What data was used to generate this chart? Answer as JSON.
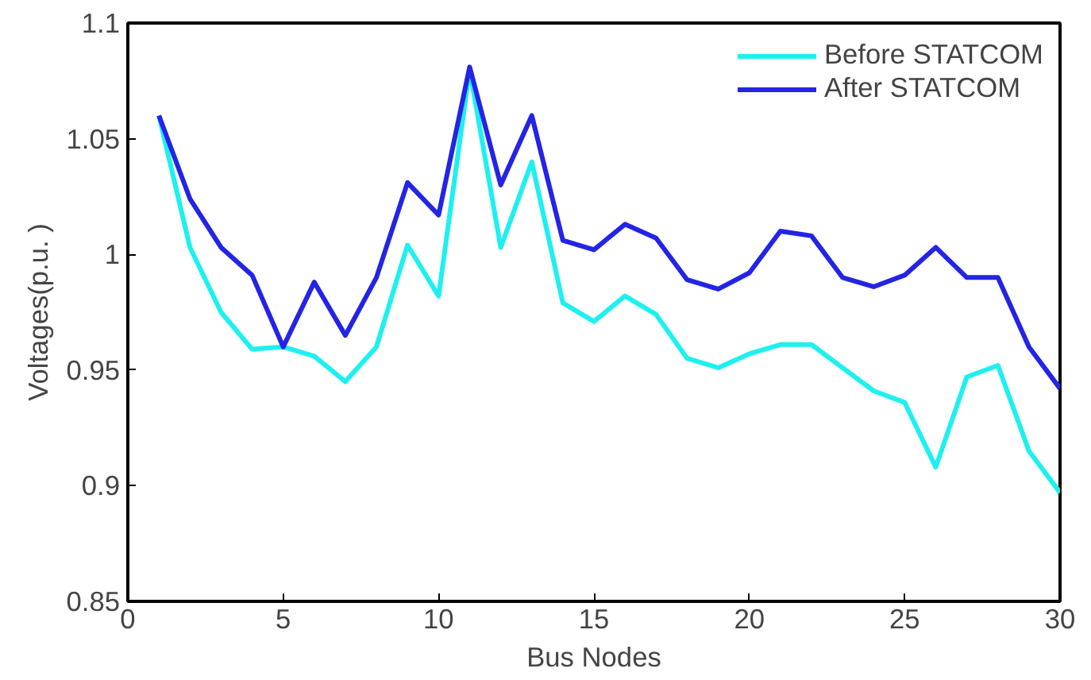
{
  "chart_data": {
    "type": "line",
    "xlabel": "Bus Nodes",
    "ylabel": "Voltages(p.u. )",
    "x": [
      1,
      2,
      3,
      4,
      5,
      6,
      7,
      8,
      9,
      10,
      11,
      12,
      13,
      14,
      15,
      16,
      17,
      18,
      19,
      20,
      21,
      22,
      23,
      24,
      25,
      26,
      27,
      28,
      29,
      30
    ],
    "series": [
      {
        "name": "Before STATCOM",
        "color": "#1ef0f0",
        "values": [
          1.06,
          1.003,
          0.975,
          0.959,
          0.96,
          0.956,
          0.945,
          0.96,
          1.004,
          0.982,
          1.08,
          1.003,
          1.04,
          0.979,
          0.971,
          0.982,
          0.974,
          0.955,
          0.951,
          0.957,
          0.961,
          0.961,
          0.951,
          0.941,
          0.936,
          0.908,
          0.947,
          0.952,
          0.915,
          0.897
        ]
      },
      {
        "name": "After STATCOM",
        "color": "#2424e6",
        "values": [
          1.06,
          1.024,
          1.003,
          0.991,
          0.96,
          0.988,
          0.965,
          0.99,
          1.031,
          1.017,
          1.081,
          1.03,
          1.06,
          1.006,
          1.002,
          1.013,
          1.007,
          0.989,
          0.985,
          0.992,
          1.01,
          1.008,
          0.99,
          0.986,
          0.991,
          1.003,
          0.99,
          0.99,
          0.96,
          0.942
        ]
      }
    ],
    "xlim": [
      0,
      30
    ],
    "xticks": [
      0,
      5,
      10,
      15,
      20,
      25,
      30
    ],
    "ylim": [
      0.85,
      1.1
    ],
    "yticks": [
      0.85,
      0.9,
      0.95,
      1,
      1.05,
      1.1
    ],
    "grid": false,
    "legend": "top right",
    "marker": "none",
    "line_style": "solid"
  }
}
